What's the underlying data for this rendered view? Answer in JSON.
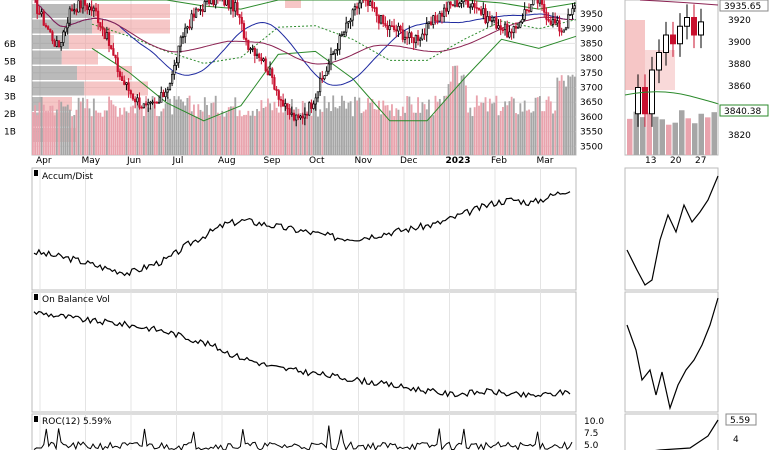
{
  "colors": {
    "candle_up": "#000000",
    "candle_down": "#c8102e",
    "volume_up": "#a6a6a6",
    "volume_down": "#e9a3ad",
    "volume_by_price_up": "#8c8c8c",
    "volume_by_price_down": "#f0a0a0",
    "bollinger": "#2b8a2b",
    "ma_long": "#8b2252",
    "ma_short": "#1f2aa0",
    "indicator_line": "#000000",
    "price_tag_bg": "#ffffff"
  },
  "main_panel": {
    "x_ticks": [
      "Apr",
      "May",
      "Jun",
      "Jul",
      "Aug",
      "Sep",
      "Oct",
      "Nov",
      "Dec",
      "2023",
      "Feb",
      "Mar"
    ],
    "y_ticks": [
      "3950",
      "3900",
      "3850",
      "3800",
      "3750",
      "3700",
      "3650",
      "3600",
      "3550",
      "3500"
    ],
    "volume_ticks": [
      "6B",
      "5B",
      "4B",
      "3B",
      "2B",
      "1B"
    ]
  },
  "zoom_panel": {
    "x_ticks": [
      "13",
      "20",
      "27"
    ],
    "y_ticks": [
      "3920",
      "3900",
      "3880",
      "3860",
      "3820"
    ],
    "tag_close": "3935.65",
    "tag_band": "3840.38"
  },
  "panels": {
    "accum_dist": {
      "label": "Accum/Dist"
    },
    "obv": {
      "label": "On Balance Vol"
    },
    "roc": {
      "label": "ROC(12) 5.59%",
      "y_ticks": [
        "10.0",
        "7.5",
        "5.0"
      ],
      "zoom_tag": "5.59",
      "zoom_tick": "4"
    }
  },
  "chart_data": [
    {
      "type": "candlestick",
      "title": "",
      "x_months": [
        "Apr",
        "May",
        "Jun",
        "Jul",
        "Aug",
        "Sep",
        "Oct",
        "Nov",
        "Dec",
        "2023",
        "Feb",
        "Mar"
      ],
      "ylim": [
        3480,
        3960
      ],
      "close_approx": [
        3960,
        3880,
        3800,
        3930,
        3950,
        3920,
        3820,
        3700,
        3640,
        3600,
        3620,
        3700,
        3860,
        3920,
        3960,
        3960,
        3940,
        3820,
        3780,
        3700,
        3600,
        3560,
        3610,
        3700,
        3800,
        3880,
        3960,
        3930,
        3870,
        3860,
        3830,
        3850,
        3900,
        3940,
        3960,
        3950,
        3900,
        3880,
        3840,
        3920,
        3960,
        3900,
        3860,
        3935
      ],
      "bollinger_upper": [
        3960,
        3960,
        3960,
        3940,
        3930,
        3960,
        3960,
        3960,
        3960,
        3960,
        3960,
        3950,
        3930,
        3950
      ],
      "bollinger_lower": [
        3800,
        3720,
        3620,
        3560,
        3610,
        3780,
        3790,
        3700,
        3560,
        3560,
        3700,
        3830,
        3800,
        3840
      ],
      "last_close": "3935.65"
    },
    {
      "type": "line",
      "title": "Accum/Dist",
      "values": [
        62,
        60,
        58,
        55,
        52,
        50,
        54,
        58,
        66,
        72,
        78,
        80,
        78,
        76,
        74,
        72,
        70,
        70,
        72,
        74,
        76,
        78,
        82,
        86,
        90,
        92,
        90,
        94,
        98
      ]
    },
    {
      "type": "line",
      "title": "On Balance Vol",
      "values": [
        100,
        98,
        96,
        94,
        93,
        91,
        89,
        86,
        82,
        78,
        72,
        68,
        64,
        62,
        60,
        58,
        56,
        54,
        52,
        50,
        48,
        46,
        47,
        48,
        46,
        45,
        46,
        48
      ]
    },
    {
      "type": "line",
      "title": "ROC(12)",
      "last": 5.59,
      "ylim": [
        0,
        10.0
      ]
    }
  ]
}
